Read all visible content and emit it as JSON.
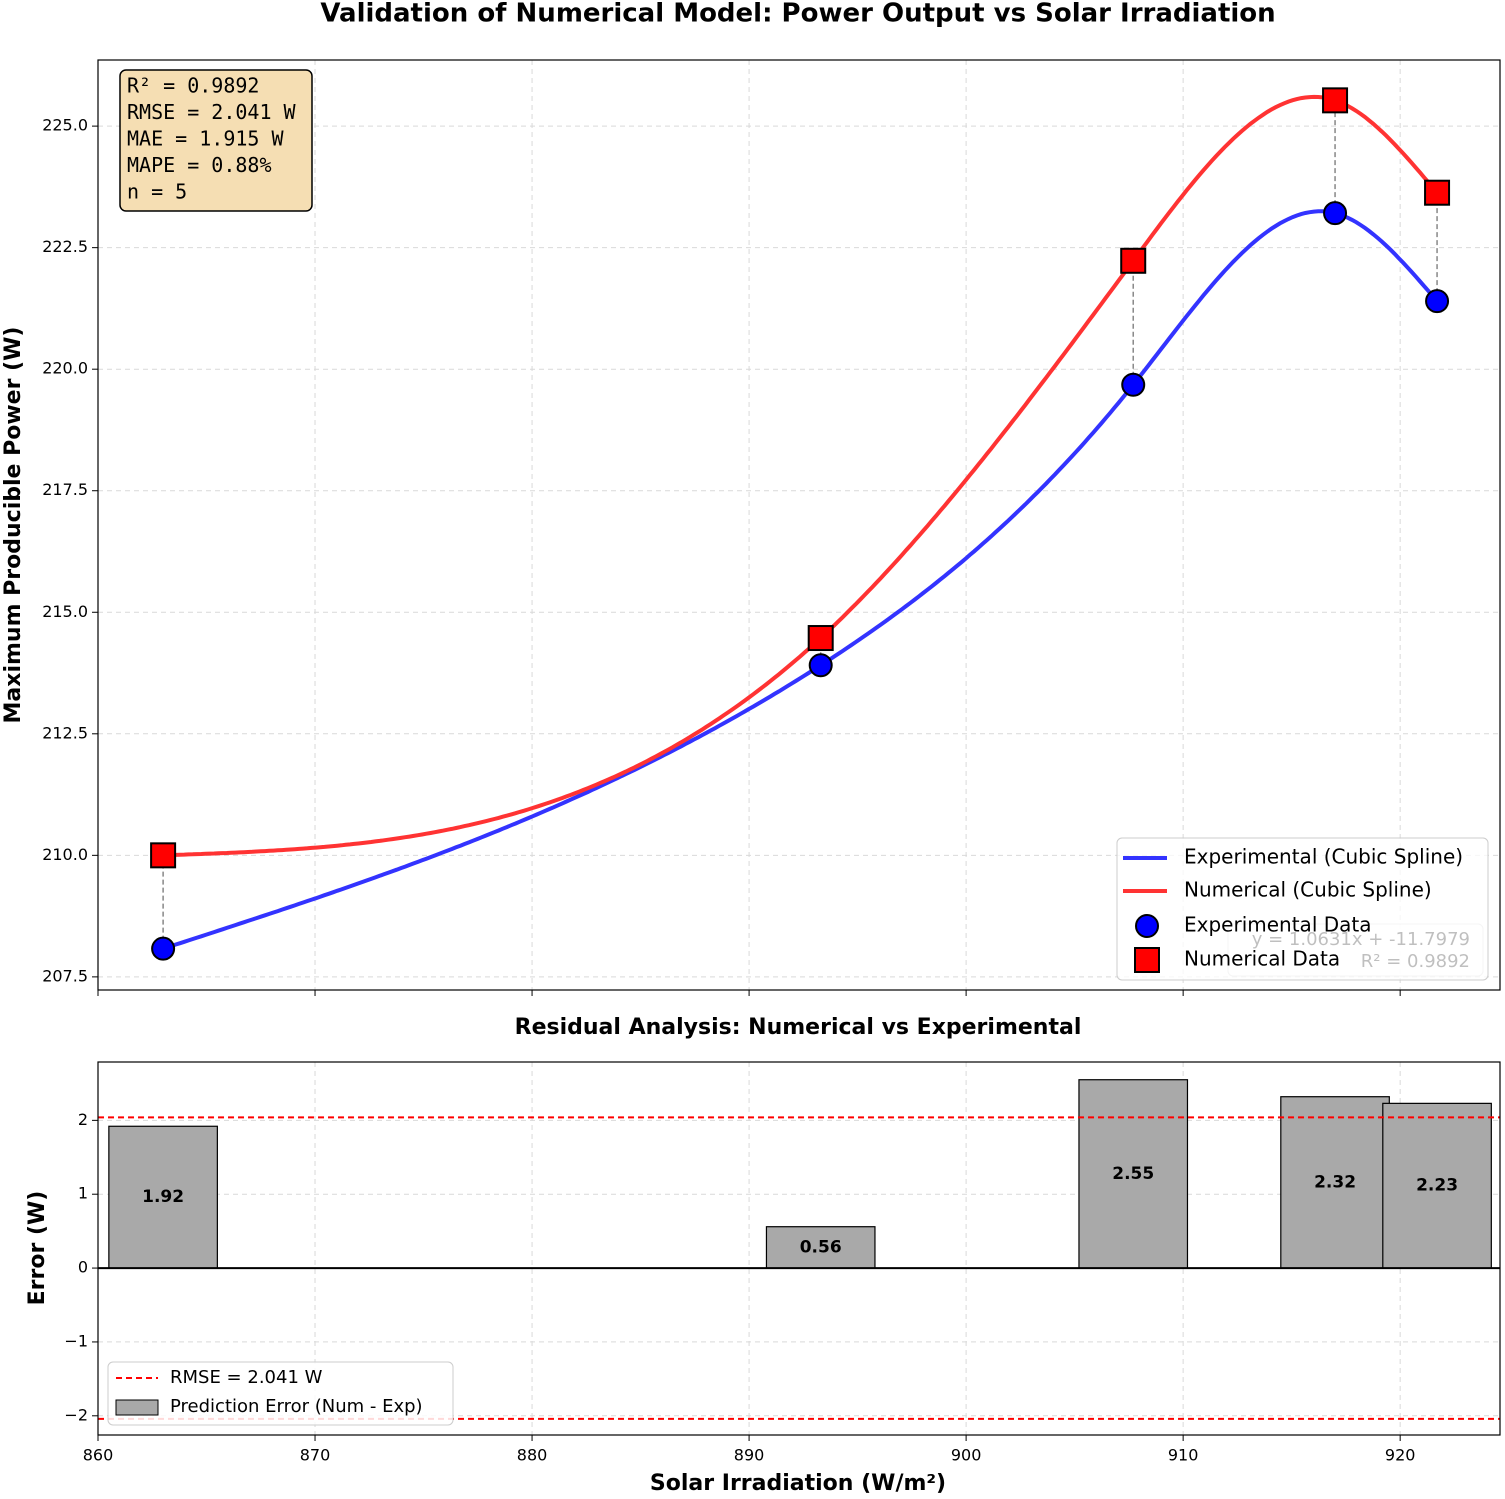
{
  "chart_data": [
    {
      "type": "line",
      "title": "Validation of Numerical Model: Power Output vs Solar Irradiation",
      "ylabel": "Maximum Producible Power (W)",
      "x": [
        863.0,
        893.3,
        907.7,
        917.0,
        921.7
      ],
      "xlim": [
        860,
        924.6
      ],
      "xticks": [
        860,
        870,
        880,
        890,
        900,
        910,
        920
      ],
      "ylim": [
        207.23,
        226.36
      ],
      "yticks": [
        {
          "value": 207.5,
          "label": "207.5"
        },
        {
          "value": 210,
          "label": "210.0"
        },
        {
          "value": 212.5,
          "label": "212.5"
        },
        {
          "value": 215,
          "label": "215.0"
        },
        {
          "value": 217.5,
          "label": "217.5"
        },
        {
          "value": 220,
          "label": "220.0"
        },
        {
          "value": 222.5,
          "label": "222.5"
        },
        {
          "value": 225,
          "label": "225.0"
        }
      ],
      "grid": true,
      "legend": "lower right",
      "series": [
        {
          "name": "Experimental (Cubic Spline)",
          "marker_name": "Experimental Data",
          "color": "#3333ff",
          "marker_color": "#0000ff",
          "marker": "circle",
          "values": [
            208.08,
            213.91,
            219.68,
            223.21,
            221.4
          ]
        },
        {
          "name": "Numerical (Cubic Spline)",
          "marker_name": "Numerical Data",
          "color": "#ff3333",
          "marker_color": "#ff0000",
          "marker": "square",
          "values": [
            210.0,
            214.47,
            222.23,
            225.53,
            223.63
          ]
        }
      ],
      "stats_box": [
        "R² = 0.9892",
        "RMSE = 2.041 W",
        "MAE = 1.915 W",
        "MAPE = 0.88%",
        "n = 5"
      ],
      "fit_annotation": [
        "y = 1.0631x + -11.7979",
        "R² = 0.9892"
      ]
    },
    {
      "type": "bar",
      "title": "Residual Analysis: Numerical vs Experimental",
      "xlabel": "Solar Irradiation (W/m²)",
      "ylabel": "Error (W)",
      "x": [
        863.0,
        893.3,
        907.7,
        917.0,
        921.7
      ],
      "xlim": [
        860,
        924.6
      ],
      "xticks": [
        860,
        870,
        880,
        890,
        900,
        910,
        920
      ],
      "ylim": [
        -2.26,
        2.79
      ],
      "yticks": [
        {
          "value": -2,
          "label": "−2"
        },
        {
          "value": -1,
          "label": "−1"
        },
        0,
        1,
        2
      ],
      "grid": true,
      "legend": "lower left",
      "series": [
        {
          "name": "Prediction Error (Num - Exp)",
          "color": "#a9a9a9",
          "values": [
            1.92,
            0.56,
            2.55,
            2.32,
            2.23
          ]
        }
      ],
      "hlines": {
        "name": "RMSE = 2.041 W",
        "color": "#ff0000",
        "values": [
          2.041,
          -2.041
        ]
      }
    }
  ]
}
